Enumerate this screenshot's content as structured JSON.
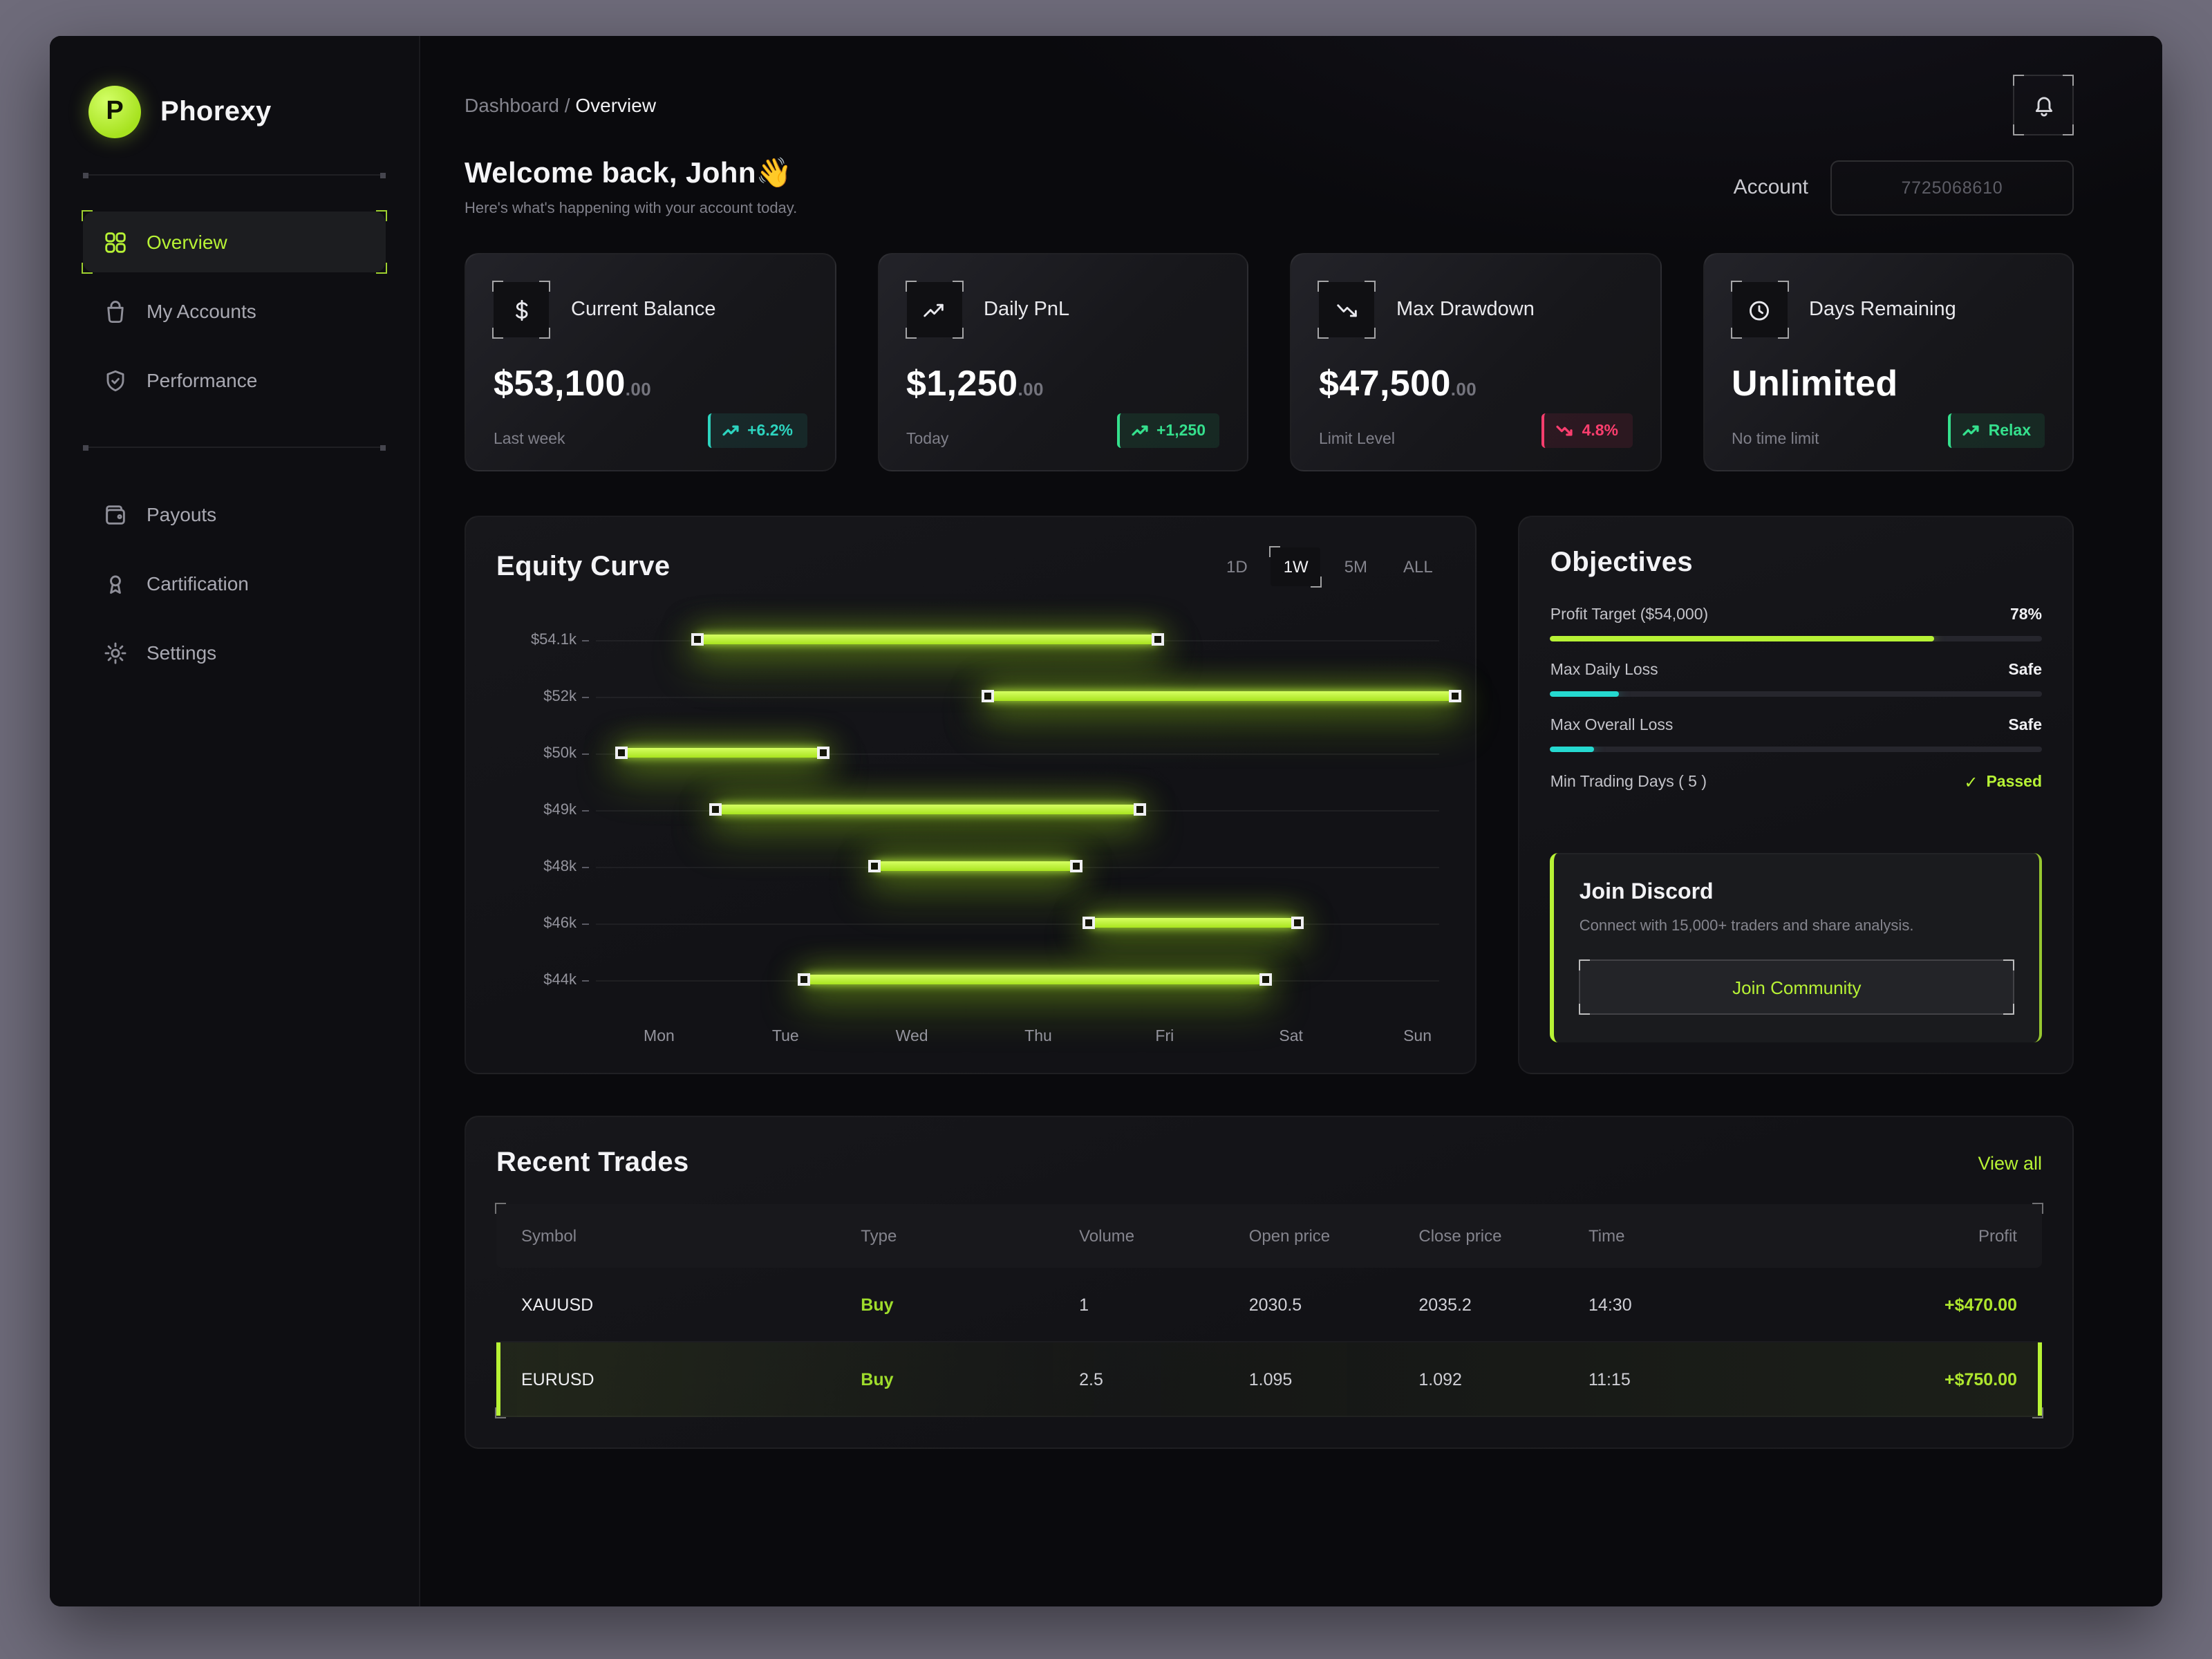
{
  "app": {
    "name": "Phorexy",
    "logo_letter": "P"
  },
  "sidebar": {
    "groups": [
      {
        "items": [
          {
            "label": "Overview",
            "icon": "grid-icon",
            "active": true
          },
          {
            "label": "My Accounts",
            "icon": "bag-icon",
            "active": false
          },
          {
            "label": "Performance",
            "icon": "shield-icon",
            "active": false
          }
        ]
      },
      {
        "items": [
          {
            "label": "Payouts",
            "icon": "wallet-icon",
            "active": false
          },
          {
            "label": "Cartification",
            "icon": "certificate-icon",
            "active": false
          },
          {
            "label": "Settings",
            "icon": "gear-icon",
            "active": false
          }
        ]
      }
    ]
  },
  "header": {
    "breadcrumb_parent": "Dashboard",
    "breadcrumb_sep": " / ",
    "breadcrumb_current": "Overview",
    "welcome": "Welcome back, John",
    "wave_emoji": "👋",
    "subtitle": "Here's what's happening with your account today.",
    "account_label": "Account",
    "account_number": "7725068610"
  },
  "stats": [
    {
      "title": "Current Balance",
      "icon": "dollar-icon",
      "value": "$53,100",
      "cents": ".00",
      "sub": "Last week",
      "badge": "+6.2%",
      "badge_icon": "trend-up-icon",
      "tone": "teal"
    },
    {
      "title": "Daily PnL",
      "icon": "pnl-icon",
      "value": "$1,250",
      "cents": ".00",
      "sub": "Today",
      "badge": "+1,250",
      "badge_icon": "trend-up-icon",
      "tone": "green"
    },
    {
      "title": "Max Drawdown",
      "icon": "drawdown-icon",
      "value": "$47,500",
      "cents": ".00",
      "sub": "Limit Level",
      "badge": "4.8%",
      "badge_icon": "trend-down-icon",
      "tone": "pink"
    },
    {
      "title": "Days Remaining",
      "icon": "clock-icon",
      "value": "Unlimited",
      "cents": "",
      "sub": "No time limit",
      "badge": "Relax",
      "badge_icon": "trend-up-icon",
      "tone": "green"
    }
  ],
  "equity": {
    "title": "Equity Curve",
    "ranges": [
      "1D",
      "1W",
      "5M",
      "ALL"
    ],
    "selected": "1W",
    "chart_data": {
      "type": "bar",
      "orientation": "horizontal-range",
      "title": "Equity Curve",
      "rows": [
        "$54.1k",
        "$52k",
        "$50k",
        "$49k",
        "$48k",
        "$46k",
        "$44k"
      ],
      "x_labels": [
        "Mon",
        "Tue",
        "Wed",
        "Thu",
        "Fri",
        "Sat",
        "Sun"
      ],
      "bars": [
        {
          "row": 0,
          "start": 0.3,
          "end": 3.95
        },
        {
          "row": 1,
          "start": 2.6,
          "end": 6.3
        },
        {
          "row": 2,
          "start": -0.3,
          "end": 1.3
        },
        {
          "row": 3,
          "start": 0.45,
          "end": 3.8
        },
        {
          "row": 4,
          "start": 1.7,
          "end": 3.3
        },
        {
          "row": 5,
          "start": 3.4,
          "end": 5.05
        },
        {
          "row": 6,
          "start": 1.15,
          "end": 4.8
        }
      ],
      "bar_color": "#b7f235"
    }
  },
  "objectives": {
    "title": "Objectives",
    "items": [
      {
        "label": "Profit Target ($54,000)",
        "value": "78%",
        "progress": 78,
        "color": "#b7f235",
        "passed": false
      },
      {
        "label": "Max Daily Loss",
        "value": "Safe",
        "progress": 14,
        "color": "#25d9d0",
        "passed": false
      },
      {
        "label": "Max Overall Loss",
        "value": "Safe",
        "progress": 9,
        "color": "#25d9d0",
        "passed": false
      },
      {
        "label": "Min Trading Days ( 5 )",
        "value": "Passed",
        "progress": null,
        "color": "",
        "passed": true,
        "check": "✓"
      }
    ],
    "discord": {
      "title": "Join Discord",
      "desc": "Connect with 15,000+ traders and share analysis.",
      "button": "Join Community"
    }
  },
  "trades": {
    "title": "Recent Trades",
    "view_all": "View all",
    "columns": [
      "Symbol",
      "Type",
      "Volume",
      "Open price",
      "Close price",
      "Time",
      "Profit"
    ],
    "rows": [
      {
        "cells": [
          "XAUUSD",
          "Buy",
          "1",
          "2030.5",
          "2035.2",
          "14:30",
          "+$470.00"
        ],
        "highlight": false
      },
      {
        "cells": [
          "EURUSD",
          "Buy",
          "2.5",
          "1.095",
          "1.092",
          "11:15",
          "+$750.00"
        ],
        "highlight": true
      }
    ]
  },
  "colors": {
    "accent": "#b7f235",
    "teal": "#2dd4bf",
    "cyan": "#25d9d0",
    "pink": "#fb3e6e",
    "green": "#35e08d"
  }
}
